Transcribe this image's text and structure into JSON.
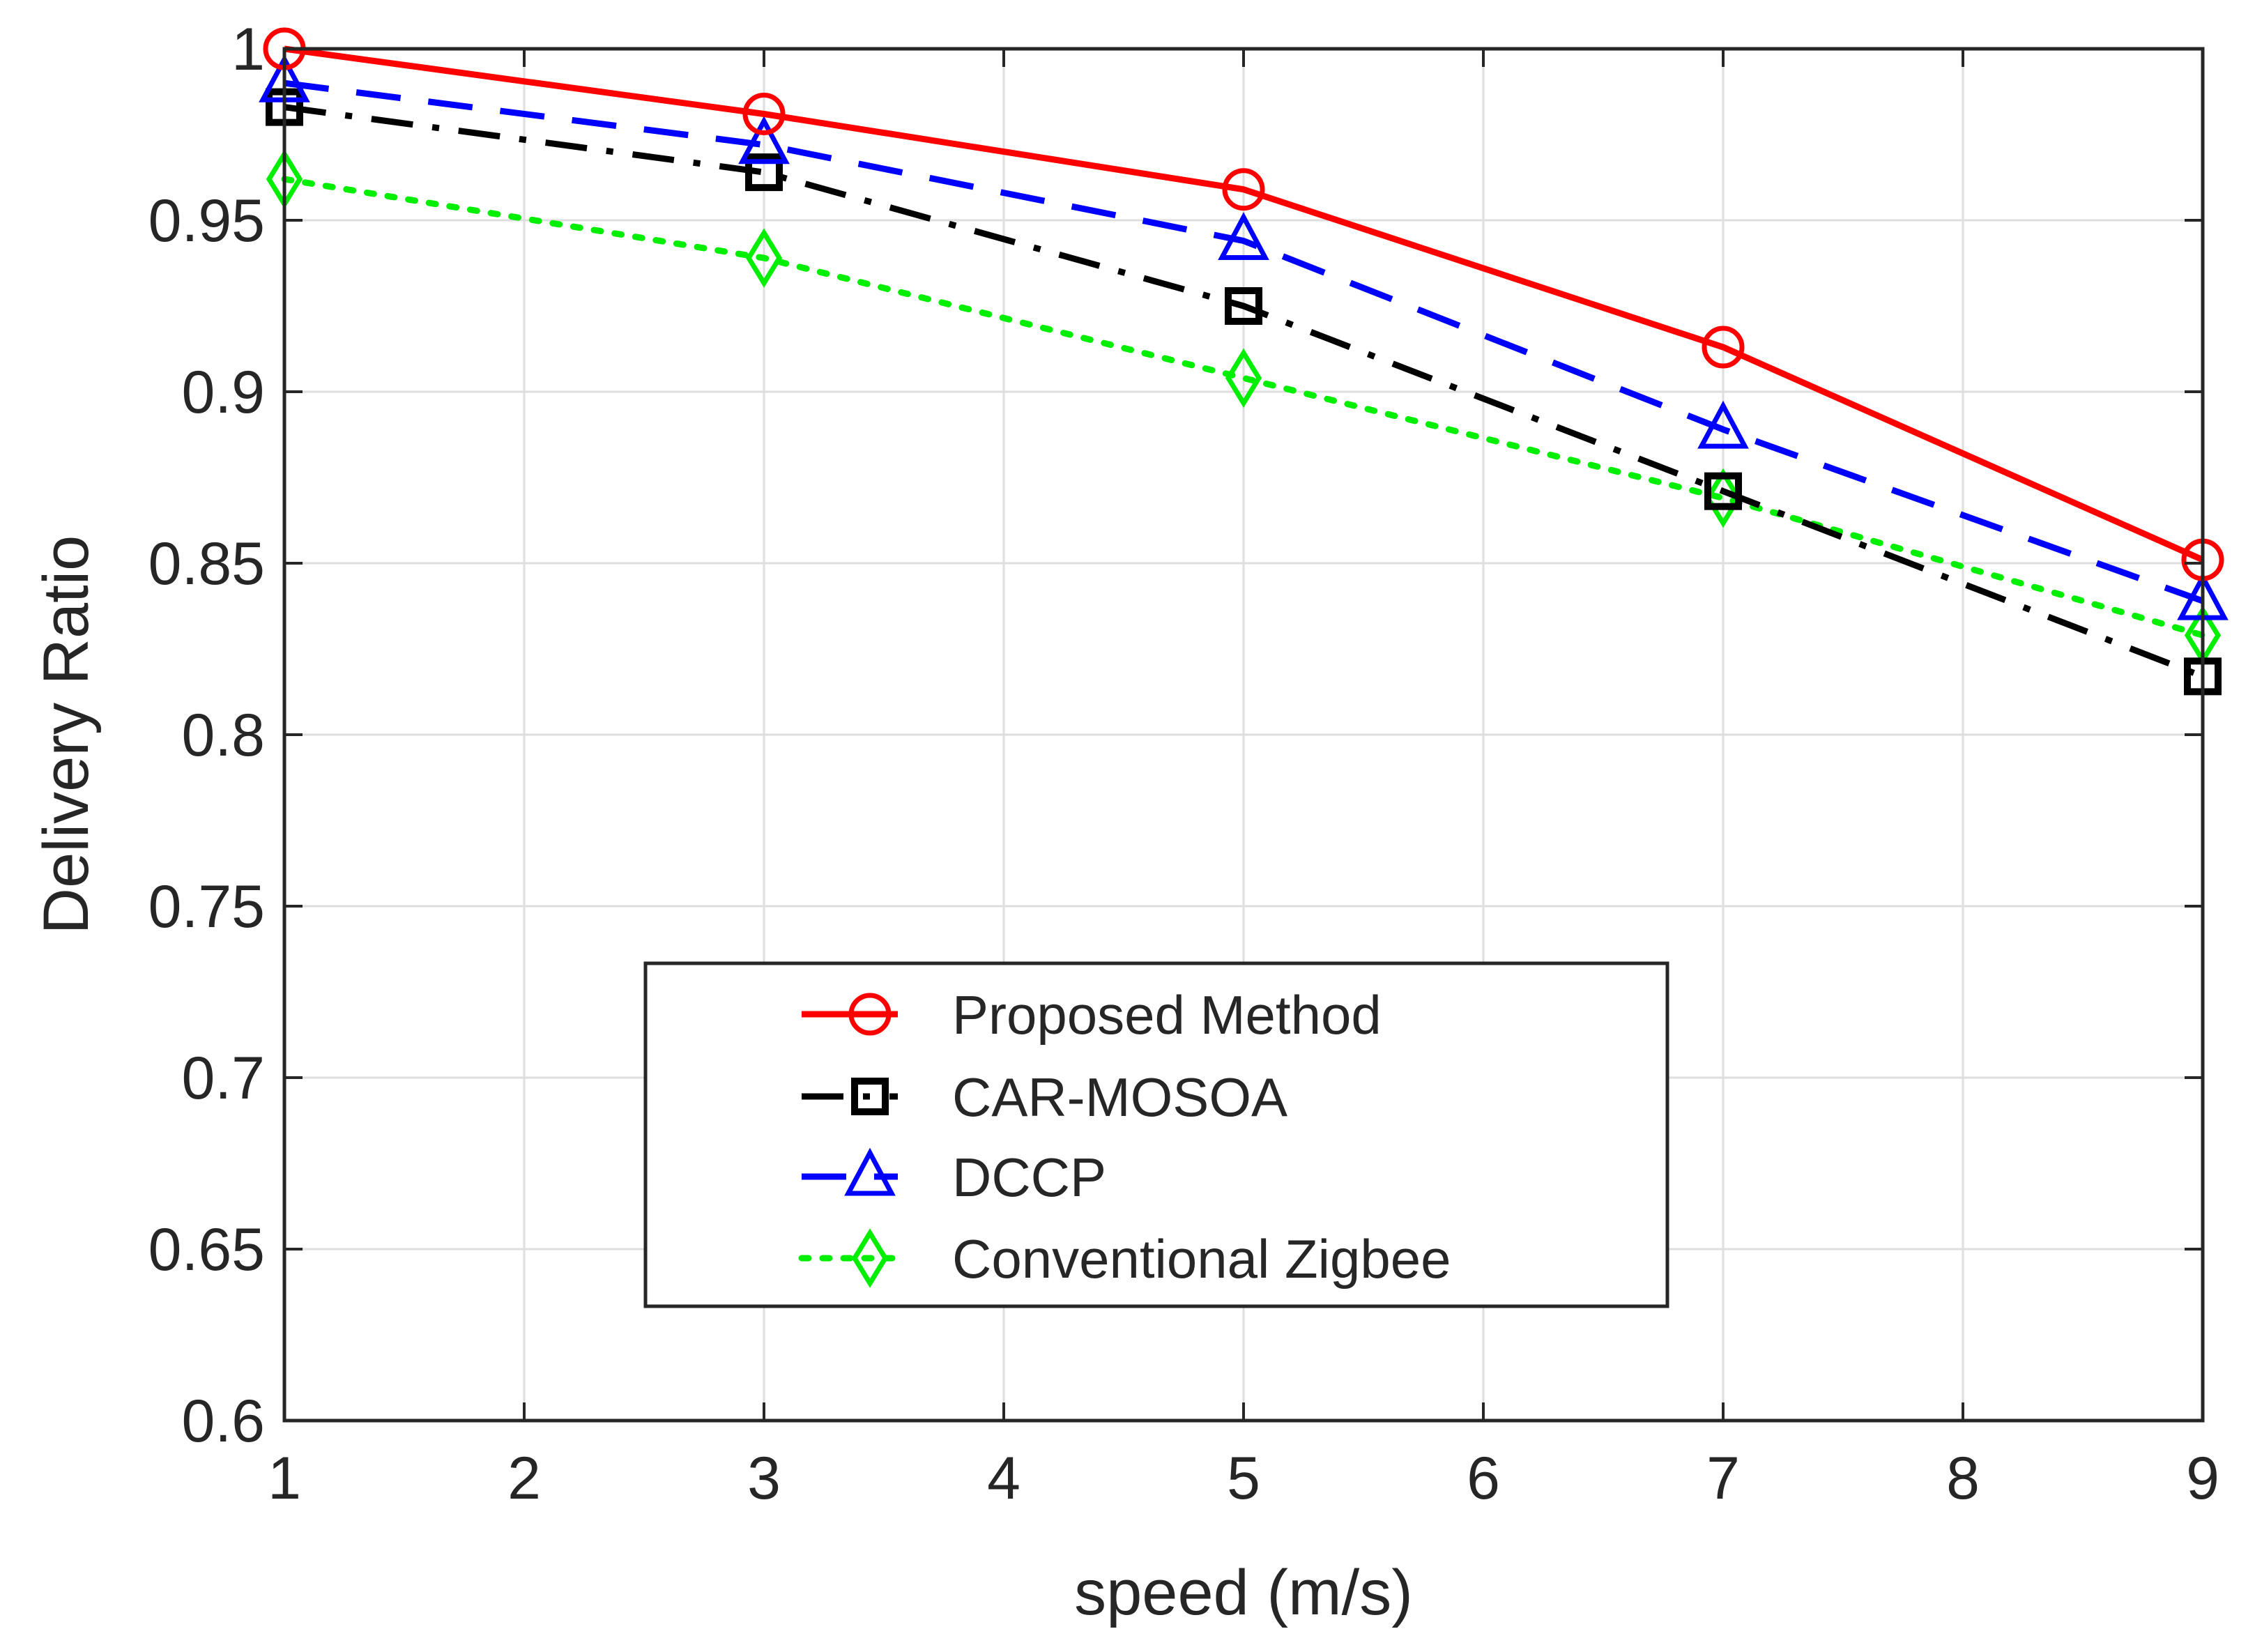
{
  "chart_data": {
    "type": "line",
    "title": "",
    "xlabel": "speed (m/s)",
    "ylabel": "Delivery Ratio",
    "xlim": [
      1,
      9
    ],
    "ylim": [
      0.6,
      1
    ],
    "xticks": [
      1,
      2,
      3,
      4,
      5,
      6,
      7,
      8,
      9
    ],
    "xtick_labels": [
      "1",
      "2",
      "3",
      "4",
      "5",
      "6",
      "7",
      "8",
      "9"
    ],
    "yticks": [
      0.6,
      0.65,
      0.7,
      0.75,
      0.8,
      0.85,
      0.9,
      0.95,
      1
    ],
    "ytick_labels": [
      "0.6",
      "0.65",
      "0.7",
      "0.75",
      "0.8",
      "0.85",
      "0.9",
      "0.95",
      "1"
    ],
    "grid": true,
    "legend_position": "lower-center",
    "x": [
      1,
      3,
      5,
      7,
      9
    ],
    "series": [
      {
        "name": "Proposed Method",
        "values": [
          1.0,
          0.981,
          0.959,
          0.913,
          0.851
        ],
        "color": "#ff0000",
        "dash": "solid",
        "marker": "circle"
      },
      {
        "name": "CAR-MOSOA",
        "values": [
          0.983,
          0.964,
          0.925,
          0.871,
          0.817
        ],
        "color": "#000000",
        "dash": "dashdot",
        "marker": "square"
      },
      {
        "name": "DCCP",
        "values": [
          0.99,
          0.972,
          0.944,
          0.889,
          0.839
        ],
        "color": "#0000ff",
        "dash": "dashed",
        "marker": "triangle"
      },
      {
        "name": "Conventional Zigbee",
        "values": [
          0.962,
          0.939,
          0.904,
          0.869,
          0.829
        ],
        "color": "#00ee00",
        "dash": "dotted",
        "marker": "diamond"
      }
    ]
  }
}
